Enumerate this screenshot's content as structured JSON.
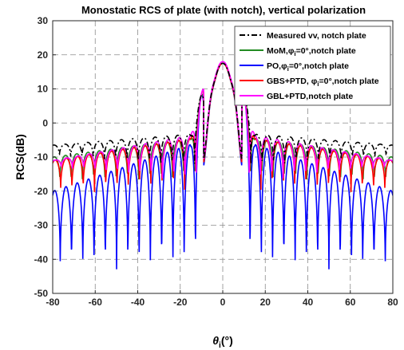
{
  "chart_data": {
    "type": "line",
    "title": "Monostatic RCS of plate (with notch), vertical polarization",
    "xlabel": "θi(°)",
    "xlabel_parts": {
      "base": "θ",
      "sub": "i",
      "suffix": "(°)"
    },
    "ylabel": "RCS(dB)",
    "xlim": [
      -80,
      80
    ],
    "ylim": [
      -50,
      30
    ],
    "xticks": [
      -80,
      -60,
      -40,
      -20,
      0,
      20,
      40,
      60,
      80
    ],
    "yticks": [
      -50,
      -40,
      -30,
      -20,
      -10,
      0,
      10,
      20,
      30
    ],
    "grid": true,
    "legend_position": "top-right",
    "series": [
      {
        "name": "Measured vv, notch plate",
        "legend": {
          "pre": "Measured vv, notch plate",
          "sub": "",
          "post": ""
        },
        "color": "#000000",
        "style": "dashdot",
        "peak": 17.5,
        "env_inner": -3,
        "env_outer": -6.5,
        "floor": -15,
        "floor_outer": -10
      },
      {
        "name": "MoM,φi=0°,notch plate",
        "legend": {
          "pre": "MoM,φ",
          "sub": "i",
          "post": "=0°,notch plate"
        },
        "color": "#228b22",
        "style": "solid",
        "peak": 17.5,
        "env_inner": -4,
        "env_outer": -10,
        "floor": -18,
        "floor_outer": -18
      },
      {
        "name": "PO,φi=0°,notch plate",
        "legend": {
          "pre": "PO,φ",
          "sub": "i",
          "post": "=0°,notch plate"
        },
        "color": "#0000ff",
        "style": "solid",
        "peak": 17.5,
        "env_inner": -5,
        "env_outer": -20,
        "floor": -48,
        "floor_outer": -45
      },
      {
        "name": "GBS+PTD, φi=0°,notch plate",
        "legend": {
          "pre": "GBS+PTD, φ",
          "sub": "i",
          "post": "=0°,notch plate"
        },
        "color": "#ff0000",
        "style": "solid",
        "peak": 17.5,
        "env_inner": -4,
        "env_outer": -11,
        "floor": -20,
        "floor_outer": -21
      },
      {
        "name": "GBL+PTD,notch plate",
        "legend": {
          "pre": "GBL+PTD,notch plate",
          "sub": "",
          "post": ""
        },
        "color": "#ff00ff",
        "style": "solid",
        "peak": 18,
        "env_inner": -3,
        "env_outer": -11,
        "floor": -20,
        "floor_outer": -13
      }
    ]
  }
}
